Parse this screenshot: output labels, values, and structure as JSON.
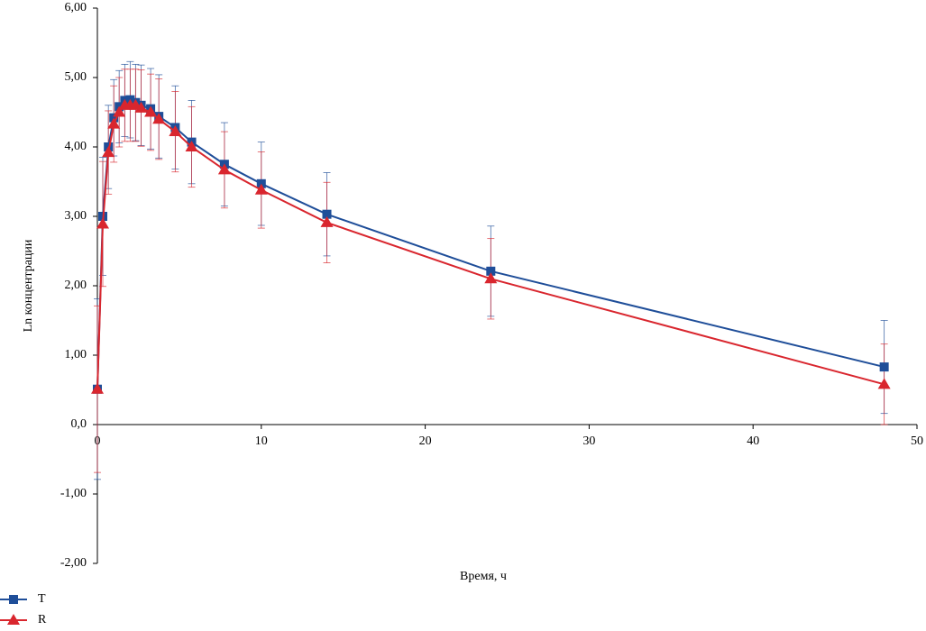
{
  "chart_data": {
    "type": "line",
    "xlabel": "Время, ч",
    "ylabel": "Ln концентрации",
    "x": [
      0,
      0.33,
      0.67,
      1,
      1.33,
      1.67,
      2,
      2.33,
      2.67,
      3.25,
      3.75,
      4.75,
      5.75,
      7.75,
      10,
      14,
      24,
      48
    ],
    "series": [
      {
        "name": "T",
        "color": "#1f4e99",
        "marker": "square",
        "values": [
          0.51,
          3.0,
          4.0,
          4.42,
          4.58,
          4.67,
          4.68,
          4.64,
          4.6,
          4.55,
          4.44,
          4.28,
          4.07,
          3.75,
          3.47,
          3.03,
          2.21,
          0.83
        ],
        "errors": [
          1.3,
          0.85,
          0.6,
          0.55,
          0.52,
          0.52,
          0.55,
          0.55,
          0.58,
          0.58,
          0.6,
          0.6,
          0.6,
          0.6,
          0.6,
          0.6,
          0.65,
          0.67
        ]
      },
      {
        "name": "R",
        "color": "#d9262e",
        "marker": "triangle",
        "values": [
          0.51,
          2.89,
          3.92,
          4.33,
          4.5,
          4.6,
          4.6,
          4.6,
          4.56,
          4.5,
          4.4,
          4.22,
          4.0,
          3.67,
          3.38,
          2.91,
          2.1,
          0.58
        ],
        "errors": [
          1.2,
          0.9,
          0.6,
          0.55,
          0.5,
          0.52,
          0.52,
          0.52,
          0.55,
          0.55,
          0.58,
          0.58,
          0.58,
          0.55,
          0.55,
          0.58,
          0.58,
          0.58
        ]
      }
    ],
    "xlim": [
      0,
      50
    ],
    "xticks": [
      0,
      10,
      20,
      30,
      40,
      50
    ],
    "ylim": [
      -2,
      6
    ],
    "yticks": [
      {
        "value": -2,
        "label": "-2,00"
      },
      {
        "value": -1,
        "label": "-1,00"
      },
      {
        "value": 0,
        "label": "0,0"
      },
      {
        "value": 1,
        "label": "1,00"
      },
      {
        "value": 2,
        "label": "2,00"
      },
      {
        "value": 3,
        "label": "3,00"
      },
      {
        "value": 4,
        "label": "4,00"
      },
      {
        "value": 5,
        "label": "5,00"
      },
      {
        "value": 6,
        "label": "6,00"
      }
    ],
    "grid": false,
    "legend": "bottom-left"
  }
}
